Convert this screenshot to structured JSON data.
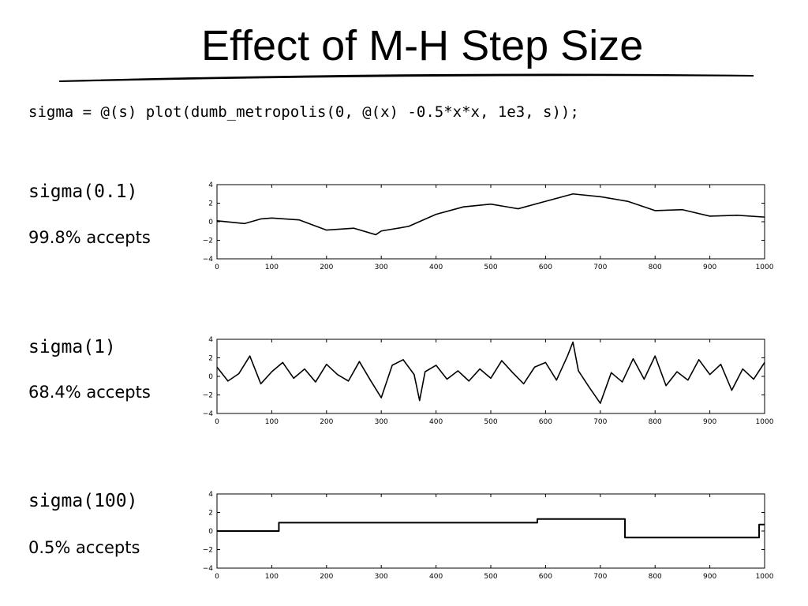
{
  "slide": {
    "title": "Effect of M-H Step Size",
    "code": "sigma = @(s) plot(dumb_metropolis(0, @(x) -0.5*x*x, 1e3, s));"
  },
  "panels": [
    {
      "label": "sigma(0.1)",
      "accept": "99.8% accepts"
    },
    {
      "label": "sigma(1)",
      "accept": "68.4% accepts"
    },
    {
      "label": "sigma(100)",
      "accept": "0.5% accepts"
    }
  ],
  "chart_data": [
    {
      "type": "line",
      "title": "",
      "xlabel": "",
      "ylabel": "",
      "xlim": [
        0,
        1000
      ],
      "ylim": [
        -4,
        4
      ],
      "xticks": [
        0,
        100,
        200,
        300,
        400,
        500,
        600,
        700,
        800,
        900,
        1000
      ],
      "yticks": [
        4,
        2,
        0,
        -2,
        -4
      ],
      "grid": false,
      "line_color": "#000000",
      "x": [
        0,
        50,
        80,
        100,
        150,
        200,
        250,
        290,
        300,
        350,
        400,
        450,
        500,
        550,
        600,
        650,
        700,
        750,
        800,
        850,
        900,
        950,
        1000
      ],
      "values": [
        0.1,
        -0.2,
        0.3,
        0.4,
        0.2,
        -0.9,
        -0.7,
        -1.4,
        -1.0,
        -0.5,
        0.8,
        1.6,
        1.9,
        1.4,
        2.2,
        3.0,
        2.7,
        2.2,
        1.2,
        1.3,
        0.6,
        0.7,
        0.5
      ]
    },
    {
      "type": "line",
      "title": "",
      "xlabel": "",
      "ylabel": "",
      "xlim": [
        0,
        1000
      ],
      "ylim": [
        -4,
        4
      ],
      "xticks": [
        0,
        100,
        200,
        300,
        400,
        500,
        600,
        700,
        800,
        900,
        1000
      ],
      "yticks": [
        4,
        2,
        0,
        -2,
        -4
      ],
      "grid": false,
      "line_color": "#000000",
      "x": [
        0,
        20,
        40,
        60,
        80,
        100,
        120,
        140,
        160,
        180,
        200,
        220,
        240,
        260,
        280,
        300,
        320,
        340,
        360,
        370,
        380,
        400,
        420,
        440,
        460,
        480,
        500,
        520,
        540,
        560,
        580,
        600,
        620,
        640,
        650,
        660,
        680,
        700,
        720,
        740,
        760,
        780,
        800,
        820,
        840,
        860,
        880,
        900,
        920,
        940,
        960,
        980,
        1000
      ],
      "values": [
        1.0,
        -0.5,
        0.3,
        2.2,
        -0.8,
        0.5,
        1.5,
        -0.2,
        0.8,
        -0.6,
        1.3,
        0.2,
        -0.5,
        1.6,
        -0.4,
        -2.3,
        1.2,
        1.8,
        0.2,
        -2.6,
        0.5,
        1.2,
        -0.3,
        0.6,
        -0.5,
        0.8,
        -0.2,
        1.7,
        0.4,
        -0.8,
        1.0,
        1.5,
        -0.4,
        2.2,
        3.7,
        0.6,
        -1.2,
        -2.9,
        0.4,
        -0.6,
        1.9,
        -0.3,
        2.2,
        -1.0,
        0.5,
        -0.4,
        1.8,
        0.2,
        1.3,
        -1.5,
        0.8,
        -0.3,
        1.5
      ]
    },
    {
      "type": "line",
      "title": "",
      "xlabel": "",
      "ylabel": "",
      "xlim": [
        0,
        1000
      ],
      "ylim": [
        -4,
        4
      ],
      "xticks": [
        0,
        100,
        200,
        300,
        400,
        500,
        600,
        700,
        800,
        900,
        1000
      ],
      "yticks": [
        4,
        2,
        0,
        -2,
        -4
      ],
      "grid": false,
      "line_color": "#000000",
      "step": true,
      "x": [
        0,
        113,
        585,
        745,
        990,
        1000
      ],
      "values": [
        0.0,
        0.9,
        1.3,
        -0.7,
        0.7,
        0.7
      ]
    }
  ]
}
